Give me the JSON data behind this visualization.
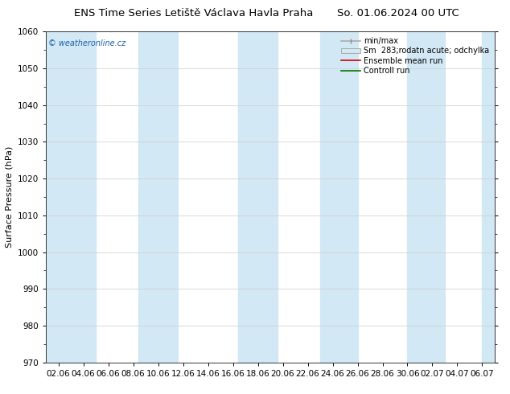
{
  "title_left": "ENS Time Series Letiště Václava Havla Praha",
  "title_right": "So. 01.06.2024 00 UTC",
  "ylabel": "Surface Pressure (hPa)",
  "ylim": [
    970,
    1060
  ],
  "yticks": [
    970,
    980,
    990,
    1000,
    1010,
    1020,
    1030,
    1040,
    1050,
    1060
  ],
  "xtick_labels": [
    "02.06",
    "04.06",
    "06.06",
    "08.06",
    "10.06",
    "12.06",
    "14.06",
    "16.06",
    "18.06",
    "20.06",
    "22.06",
    "24.06",
    "26.06",
    "28.06",
    "30.06",
    "02.07",
    "04.07",
    "06.07"
  ],
  "n_xticks": 18,
  "watermark": "© weatheronline.cz",
  "legend_entries": [
    "min/max",
    "Sm  283;rodatn acute; odchylka",
    "Ensemble mean run",
    "Controll run"
  ],
  "bg_color": "#ffffff",
  "band_color": "#d3e8f5",
  "band_alpha": 1.0,
  "title_fontsize": 9.5,
  "axis_fontsize": 8,
  "tick_fontsize": 7.5,
  "legend_fontsize": 7
}
